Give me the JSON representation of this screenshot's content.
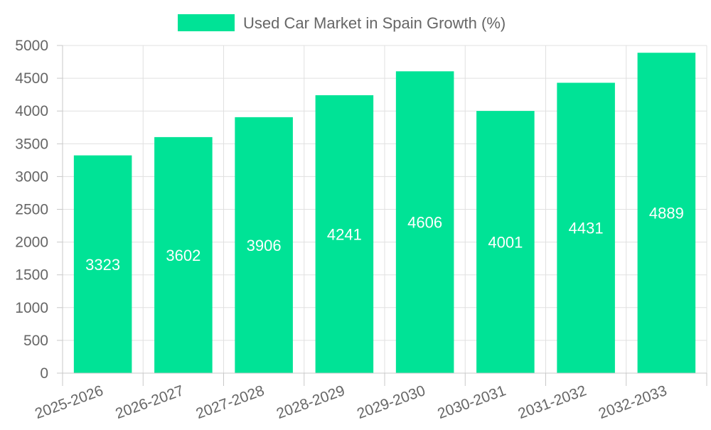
{
  "chart_data": {
    "type": "bar",
    "title": "",
    "xlabel": "",
    "ylabel": "",
    "categories": [
      "2025-2026",
      "2026-2027",
      "2027-2028",
      "2028-2029",
      "2029-2030",
      "2030-2031",
      "2031-2032",
      "2032-2033"
    ],
    "series": [
      {
        "name": "Used Car Market in Spain Growth (%)",
        "values": [
          3323,
          3602,
          3906,
          4241,
          4606,
          4001,
          4431,
          4889
        ],
        "color": "#00e396"
      }
    ],
    "ylim": [
      0,
      5000
    ],
    "yticks": [
      0,
      500,
      1000,
      1500,
      2000,
      2500,
      3000,
      3500,
      4000,
      4500,
      5000
    ],
    "grid": true,
    "legend_position": "top-center",
    "data_labels": true,
    "data_label_color": "#ffffff"
  },
  "colors": {
    "grid": "#e0e0e0",
    "axis": "#c8c8c8",
    "tick_text": "#666666",
    "legend_text": "#666666"
  }
}
